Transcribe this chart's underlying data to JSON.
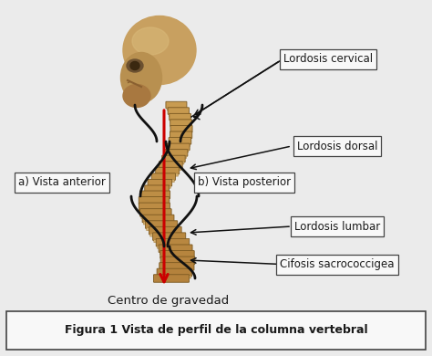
{
  "background_color": "#ebebeb",
  "title_box_text": "Figura 1 Vista de perfil de la columna vertebral",
  "subtitle_text": "Centro de gravedad",
  "label_cervical": "Lordosis cervical",
  "label_dorsal": "Lordosis dorsal",
  "label_anterior": "a) Vista anterior",
  "label_posterior": "b) Vista posterior",
  "label_lumbar": "Lordosis lumbar",
  "label_coccigea": "Cifosis sacrococcigea",
  "box_facecolor": "#f8f8f8",
  "box_edgecolor": "#444444",
  "text_color": "#1a1a1a",
  "arrow_color": "#111111",
  "red_line_color": "#cc0000",
  "skull_color": "#c8a060",
  "skull_shadow": "#a07840",
  "vertebra_colors": [
    "#c8a060",
    "#b89050",
    "#a87840"
  ],
  "bracket_color": "#111111"
}
